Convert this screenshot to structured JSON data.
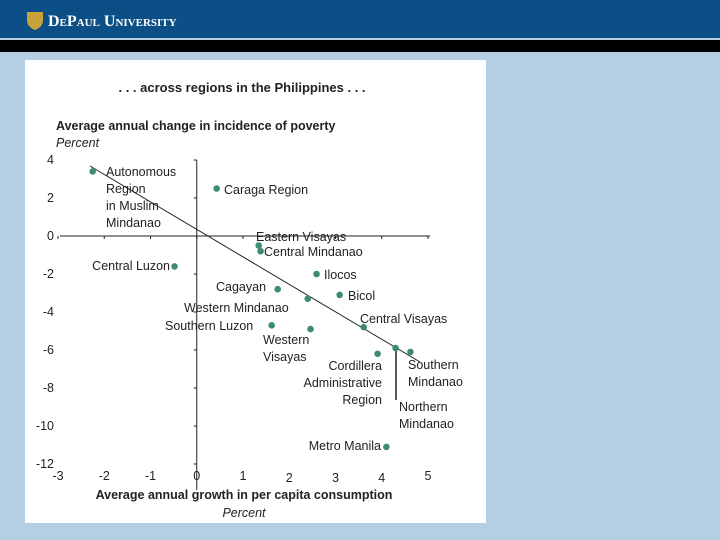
{
  "header": {
    "title": "DePaul University"
  },
  "chart_data": {
    "type": "scatter",
    "title": ". . . across regions in the Philippines . . .",
    "y_label": "Average annual change in incidence of poverty",
    "y_unit": "Percent",
    "x_label": "Average annual growth in per capita consumption",
    "x_unit": "Percent",
    "color": "#3d8a79",
    "xlim": [
      -3,
      5
    ],
    "xticks": [
      -3,
      -2,
      -1,
      0,
      1,
      2,
      3,
      4,
      5
    ],
    "ylim": [
      -12,
      4
    ],
    "yticks": [
      -12,
      -10,
      -8,
      -6,
      -4,
      -2,
      0,
      2,
      4
    ],
    "points": [
      {
        "label": [
          "Autonomous",
          "Region",
          "in Muslim",
          "Mindanao"
        ],
        "x": -2.25,
        "y": 3.4
      },
      {
        "label": [
          "Caraga Region"
        ],
        "x": 0.43,
        "y": 2.5
      },
      {
        "label": [
          "Eastern Visayas"
        ],
        "x": 1.34,
        "y": -0.5
      },
      {
        "label": [
          "Central Mindanao"
        ],
        "x": 1.38,
        "y": -0.8
      },
      {
        "label": [
          "Central Luzon"
        ],
        "x": -0.48,
        "y": -1.6
      },
      {
        "label": [
          "Ilocos"
        ],
        "x": 2.59,
        "y": -2.0
      },
      {
        "label": [
          "Cagayan"
        ],
        "x": 1.75,
        "y": -2.8
      },
      {
        "label": [
          "Bicol"
        ],
        "x": 3.09,
        "y": -3.1
      },
      {
        "label": [
          "Western Mindanao"
        ],
        "x": 2.4,
        "y": -3.3
      },
      {
        "label": [
          "Southern Luzon"
        ],
        "x": 1.62,
        "y": -4.7
      },
      {
        "label": [
          "Western",
          "Visayas"
        ],
        "x": 2.46,
        "y": -4.9
      },
      {
        "label": [
          "Central Visayas"
        ],
        "x": 3.61,
        "y": -4.8
      },
      {
        "label": [
          "Cordillera",
          "Administrative",
          "Region"
        ],
        "x": 3.91,
        "y": -6.2
      },
      {
        "label": [
          "Southern",
          "Mindanao"
        ],
        "x": 4.62,
        "y": -6.1
      },
      {
        "label": [
          "Northern",
          "Mindanao"
        ],
        "x": 4.3,
        "y": -5.9
      },
      {
        "label": [
          "Metro Manila"
        ],
        "x": 4.1,
        "y": -11.1
      }
    ]
  }
}
